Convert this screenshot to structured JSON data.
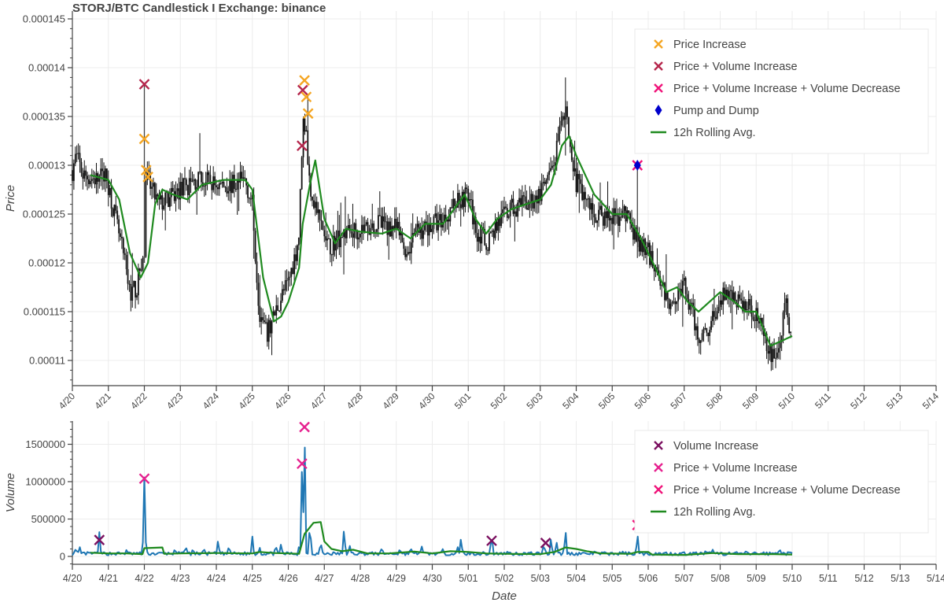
{
  "chart_data": [
    {
      "type": "candlestick",
      "title": "STORJ/BTC Candlestick I Exchange: binance",
      "xlabel": "",
      "ylabel": "Price",
      "ylim": [
        0.0001074,
        0.0001462
      ],
      "yticks": [
        "0.000145",
        "0.00014",
        "0.000135",
        "0.00013",
        "0.000125",
        "0.00012",
        "0.000115",
        "0.00011"
      ],
      "ytick_values": [
        0.000145,
        0.00014,
        0.000135,
        0.00013,
        0.000125,
        0.00012,
        0.000115,
        0.00011
      ],
      "xticks": [
        "4/20",
        "4/21",
        "4/22",
        "4/23",
        "4/24",
        "4/25",
        "4/26",
        "4/27",
        "4/28",
        "4/29",
        "4/30",
        "5/01",
        "5/02",
        "5/03",
        "5/04",
        "5/05",
        "5/06",
        "5/07",
        "5/08",
        "5/09",
        "5/10",
        "5/11",
        "5/12",
        "5/13",
        "5/14"
      ],
      "grid": true,
      "legend_position": "top-right",
      "legend": [
        {
          "label": "Price Increase",
          "marker": "x",
          "color": "#f5a623"
        },
        {
          "label": "Price + Volume Increase",
          "marker": "x",
          "color": "#b5264c"
        },
        {
          "label": "Price + Volume Increase + Volume Decrease",
          "marker": "x",
          "color": "#f0147a"
        },
        {
          "label": "Pump and Dump",
          "marker": "diamond",
          "color": "#0000cc"
        },
        {
          "label": "12h Rolling Avg.",
          "marker": "line",
          "color": "#1f8a1f"
        }
      ],
      "price_path": [
        [
          0.0,
          0.0001295
        ],
        [
          0.1,
          0.000131
        ],
        [
          0.3,
          0.000129
        ],
        [
          0.7,
          0.0001285
        ],
        [
          0.9,
          0.000129
        ],
        [
          1.0,
          0.000128
        ],
        [
          1.2,
          0.0001245
        ],
        [
          1.4,
          0.000121
        ],
        [
          1.6,
          0.000117
        ],
        [
          1.8,
          0.0001175
        ],
        [
          1.9,
          0.00012
        ],
        [
          2.0,
          0.0001205
        ],
        [
          2.03,
          0.000129
        ],
        [
          2.2,
          0.0001275
        ],
        [
          2.4,
          0.000126
        ],
        [
          2.7,
          0.0001265
        ],
        [
          3.0,
          0.0001275
        ],
        [
          3.5,
          0.0001285
        ],
        [
          4.0,
          0.000128
        ],
        [
          4.5,
          0.000128
        ],
        [
          4.8,
          0.0001285
        ],
        [
          5.0,
          0.000126
        ],
        [
          5.1,
          0.00012
        ],
        [
          5.2,
          0.000115
        ],
        [
          5.4,
          0.0001125
        ],
        [
          5.6,
          0.0001145
        ],
        [
          5.8,
          0.0001165
        ],
        [
          6.0,
          0.000118
        ],
        [
          6.2,
          0.000121
        ],
        [
          6.3,
          0.000123
        ],
        [
          6.4,
          0.0001345
        ],
        [
          6.5,
          0.000134
        ],
        [
          6.55,
          0.000129
        ],
        [
          6.7,
          0.0001265
        ],
        [
          6.9,
          0.000124
        ],
        [
          7.1,
          0.0001215
        ],
        [
          7.5,
          0.000123
        ],
        [
          8.0,
          0.0001235
        ],
        [
          8.5,
          0.000124
        ],
        [
          9.0,
          0.0001235
        ],
        [
          9.3,
          0.000121
        ],
        [
          9.5,
          0.000123
        ],
        [
          10.0,
          0.000124
        ],
        [
          10.3,
          0.0001245
        ],
        [
          10.7,
          0.0001265
        ],
        [
          11.0,
          0.000127
        ],
        [
          11.2,
          0.0001235
        ],
        [
          11.5,
          0.000122
        ],
        [
          11.8,
          0.000124
        ],
        [
          12.2,
          0.0001255
        ],
        [
          12.6,
          0.000126
        ],
        [
          13.0,
          0.000127
        ],
        [
          13.3,
          0.000129
        ],
        [
          13.6,
          0.000134
        ],
        [
          13.75,
          0.0001355
        ],
        [
          13.9,
          0.000129
        ],
        [
          14.2,
          0.000127
        ],
        [
          14.5,
          0.000125
        ],
        [
          15.0,
          0.0001245
        ],
        [
          15.4,
          0.000125
        ],
        [
          15.7,
          0.000122
        ],
        [
          16.0,
          0.000121
        ],
        [
          16.3,
          0.000119
        ],
        [
          16.5,
          0.000116
        ],
        [
          16.8,
          0.000117
        ],
        [
          17.0,
          0.0001175
        ],
        [
          17.2,
          0.000115
        ],
        [
          17.4,
          0.0001125
        ],
        [
          17.7,
          0.0001135
        ],
        [
          18.0,
          0.000116
        ],
        [
          18.2,
          0.000117
        ],
        [
          18.4,
          0.0001165
        ],
        [
          18.7,
          0.0001155
        ],
        [
          19.0,
          0.000115
        ],
        [
          19.3,
          0.000111
        ],
        [
          19.5,
          0.0001105
        ],
        [
          19.7,
          0.000112
        ],
        [
          19.8,
          0.0001165
        ],
        [
          19.9,
          0.0001135
        ],
        [
          20.0,
          0.000112
        ]
      ],
      "rolling_avg": [
        [
          0.5,
          0.000129
        ],
        [
          1.0,
          0.0001285
        ],
        [
          1.3,
          0.0001265
        ],
        [
          1.6,
          0.000121
        ],
        [
          1.9,
          0.0001185
        ],
        [
          2.1,
          0.00012
        ],
        [
          2.3,
          0.000126
        ],
        [
          2.5,
          0.0001275
        ],
        [
          2.8,
          0.000127
        ],
        [
          3.2,
          0.0001265
        ],
        [
          3.6,
          0.000128
        ],
        [
          4.2,
          0.0001285
        ],
        [
          4.8,
          0.0001285
        ],
        [
          5.0,
          0.0001275
        ],
        [
          5.3,
          0.0001185
        ],
        [
          5.6,
          0.000114
        ],
        [
          5.8,
          0.0001145
        ],
        [
          6.0,
          0.000116
        ],
        [
          6.3,
          0.0001195
        ],
        [
          6.4,
          0.000124
        ],
        [
          6.6,
          0.000128
        ],
        [
          6.75,
          0.0001305
        ],
        [
          7.0,
          0.0001245
        ],
        [
          7.3,
          0.000122
        ],
        [
          7.6,
          0.0001235
        ],
        [
          8.0,
          0.0001232
        ],
        [
          8.6,
          0.000123
        ],
        [
          9.0,
          0.0001235
        ],
        [
          9.4,
          0.0001225
        ],
        [
          9.8,
          0.000124
        ],
        [
          10.3,
          0.000124
        ],
        [
          10.6,
          0.0001255
        ],
        [
          10.9,
          0.000127
        ],
        [
          11.2,
          0.0001245
        ],
        [
          11.5,
          0.000123
        ],
        [
          11.8,
          0.0001245
        ],
        [
          12.2,
          0.0001255
        ],
        [
          12.6,
          0.000126
        ],
        [
          13.0,
          0.0001265
        ],
        [
          13.3,
          0.000128
        ],
        [
          13.6,
          0.000132
        ],
        [
          13.8,
          0.000133
        ],
        [
          14.0,
          0.000131
        ],
        [
          14.5,
          0.000127
        ],
        [
          15.0,
          0.000125
        ],
        [
          15.4,
          0.000125
        ],
        [
          15.8,
          0.0001225
        ],
        [
          16.2,
          0.0001195
        ],
        [
          16.5,
          0.000117
        ],
        [
          16.8,
          0.0001175
        ],
        [
          17.1,
          0.000116
        ],
        [
          17.4,
          0.000115
        ],
        [
          17.7,
          0.000116
        ],
        [
          18.0,
          0.000117
        ],
        [
          18.4,
          0.000116
        ],
        [
          18.7,
          0.000115
        ],
        [
          19.0,
          0.000115
        ],
        [
          19.4,
          0.0001115
        ],
        [
          19.7,
          0.000112
        ],
        [
          20.0,
          0.0001125
        ]
      ],
      "markers": [
        {
          "series": "Price + Volume Increase",
          "x": 2.0,
          "y": 0.0001383
        },
        {
          "series": "Price Increase",
          "x": 2.0,
          "y": 0.0001327
        },
        {
          "series": "Price Increase",
          "x": 2.05,
          "y": 0.0001295
        },
        {
          "series": "Price Increase",
          "x": 2.1,
          "y": 0.0001288
        },
        {
          "series": "Price Increase",
          "x": 6.45,
          "y": 0.0001387
        },
        {
          "series": "Price + Volume Increase",
          "x": 6.4,
          "y": 0.0001377
        },
        {
          "series": "Price Increase",
          "x": 6.5,
          "y": 0.000137
        },
        {
          "series": "Price Increase",
          "x": 6.55,
          "y": 0.0001353
        },
        {
          "series": "Price + Volume Increase",
          "x": 6.38,
          "y": 0.000132
        },
        {
          "series": "Price + Volume Increase + Volume Decrease",
          "x": 15.7,
          "y": 0.00013
        },
        {
          "series": "Pump and Dump",
          "x": 15.7,
          "y": 0.00013
        }
      ],
      "wicks": [
        {
          "x": 2.0,
          "y1": 0.0001383,
          "y2": 0.00012
        },
        {
          "x": 15.7,
          "y1": 0.00013,
          "y2": 0.0001205
        },
        {
          "x": 13.7,
          "y1": 0.000139,
          "y2": 0.000131
        }
      ]
    },
    {
      "type": "line",
      "title": "",
      "xlabel": "Date",
      "ylabel": "Volume",
      "ylim": [
        -100000,
        1820000
      ],
      "yticks": [
        "0",
        "500000",
        "1000000",
        "1500000"
      ],
      "ytick_values": [
        0,
        500000,
        1000000,
        1500000
      ],
      "xticks": [
        "4/20",
        "4/21",
        "4/22",
        "4/23",
        "4/24",
        "4/25",
        "4/26",
        "4/27",
        "4/28",
        "4/29",
        "4/30",
        "5/01",
        "5/02",
        "5/03",
        "5/04",
        "5/05",
        "5/06",
        "5/07",
        "5/08",
        "5/09",
        "5/10",
        "5/11",
        "5/12",
        "5/13",
        "5/14"
      ],
      "grid": true,
      "legend_position": "top-right",
      "legend": [
        {
          "label": "Volume Increase",
          "marker": "x",
          "color": "#7b1060"
        },
        {
          "label": "Price + Volume Increase",
          "marker": "x",
          "color": "#e6218f"
        },
        {
          "label": "Price + Volume Increase + Volume Decrease",
          "marker": "x",
          "color": "#f0147a"
        },
        {
          "label": "12h Rolling Avg.",
          "marker": "line",
          "color": "#1f8a1f"
        }
      ],
      "volume_spikes": [
        [
          0.1,
          110000
        ],
        [
          0.2,
          130000
        ],
        [
          0.75,
          310000
        ],
        [
          1.5,
          70000
        ],
        [
          2.0,
          1040000
        ],
        [
          2.85,
          100000
        ],
        [
          3.15,
          140000
        ],
        [
          3.35,
          100000
        ],
        [
          3.65,
          110000
        ],
        [
          4.05,
          220000
        ],
        [
          4.35,
          140000
        ],
        [
          5.0,
          250000
        ],
        [
          5.2,
          120000
        ],
        [
          5.65,
          150000
        ],
        [
          5.8,
          170000
        ],
        [
          6.3,
          130000
        ],
        [
          6.38,
          1240000
        ],
        [
          6.45,
          1730000
        ],
        [
          6.6,
          450000
        ],
        [
          6.9,
          200000
        ],
        [
          7.55,
          380000
        ],
        [
          7.7,
          150000
        ],
        [
          8.6,
          120000
        ],
        [
          9.1,
          100000
        ],
        [
          9.4,
          120000
        ],
        [
          9.7,
          140000
        ],
        [
          10.3,
          100000
        ],
        [
          10.7,
          130000
        ],
        [
          10.8,
          250000
        ],
        [
          11.65,
          300000
        ],
        [
          12.1,
          70000
        ],
        [
          13.1,
          170000
        ],
        [
          13.3,
          250000
        ],
        [
          13.45,
          200000
        ],
        [
          13.7,
          360000
        ],
        [
          14.5,
          50000
        ],
        [
          15.3,
          60000
        ],
        [
          15.7,
          300000
        ],
        [
          16.5,
          40000
        ],
        [
          17.6,
          80000
        ],
        [
          17.8,
          90000
        ],
        [
          18.7,
          60000
        ],
        [
          19.2,
          50000
        ],
        [
          19.65,
          100000
        ]
      ],
      "rolling_avg": [
        [
          0.5,
          50000
        ],
        [
          1.0,
          40000
        ],
        [
          1.5,
          40000
        ],
        [
          1.95,
          30000
        ],
        [
          2.0,
          110000
        ],
        [
          2.5,
          120000
        ],
        [
          2.55,
          35000
        ],
        [
          3.0,
          40000
        ],
        [
          4.0,
          45000
        ],
        [
          5.0,
          40000
        ],
        [
          5.2,
          60000
        ],
        [
          5.6,
          45000
        ],
        [
          6.0,
          40000
        ],
        [
          6.3,
          35000
        ],
        [
          6.45,
          300000
        ],
        [
          6.7,
          450000
        ],
        [
          6.9,
          460000
        ],
        [
          7.0,
          200000
        ],
        [
          7.2,
          100000
        ],
        [
          7.5,
          70000
        ],
        [
          7.8,
          90000
        ],
        [
          8.2,
          40000
        ],
        [
          8.8,
          40000
        ],
        [
          9.5,
          65000
        ],
        [
          10.0,
          40000
        ],
        [
          10.5,
          70000
        ],
        [
          11.0,
          60000
        ],
        [
          11.5,
          40000
        ],
        [
          12.0,
          35000
        ],
        [
          13.0,
          30000
        ],
        [
          13.4,
          60000
        ],
        [
          13.7,
          120000
        ],
        [
          14.0,
          100000
        ],
        [
          14.3,
          70000
        ],
        [
          14.7,
          40000
        ],
        [
          15.5,
          35000
        ],
        [
          15.7,
          60000
        ],
        [
          16.0,
          60000
        ],
        [
          16.1,
          25000
        ],
        [
          17.0,
          20000
        ],
        [
          17.8,
          45000
        ],
        [
          18.5,
          30000
        ],
        [
          19.5,
          30000
        ],
        [
          20.0,
          25000
        ]
      ],
      "markers": [
        {
          "series": "Volume Increase",
          "x": 0.75,
          "y": 220000
        },
        {
          "series": "Price + Volume Increase",
          "x": 2.0,
          "y": 1040000
        },
        {
          "series": "Price + Volume Increase",
          "x": 6.38,
          "y": 1240000
        },
        {
          "series": "Price + Volume Increase",
          "x": 6.45,
          "y": 1730000
        },
        {
          "series": "Volume Increase",
          "x": 11.65,
          "y": 210000
        },
        {
          "series": "Volume Increase",
          "x": 13.15,
          "y": 180000
        },
        {
          "series": "Price + Volume Increase + Volume Decrease",
          "x": 15.7,
          "y": 420000
        }
      ]
    }
  ],
  "colors": {
    "candle": "#111111",
    "volume_line": "#1f77b4",
    "rolling_avg": "#1f8a1f",
    "grid": "#ececec",
    "axis": "#444444"
  }
}
